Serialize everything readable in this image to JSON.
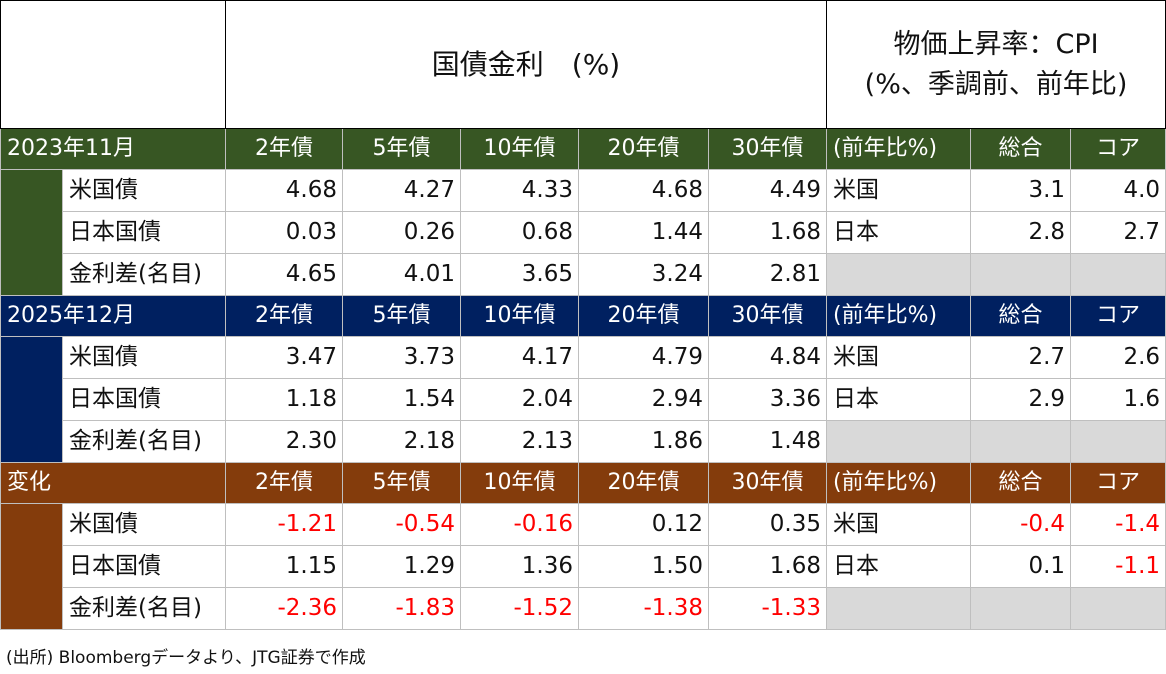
{
  "header": {
    "yield_title": "国債金利　(%)",
    "cpi_title_line1": "物価上昇率：CPI",
    "cpi_title_line2": "(%、季調前、前年比)"
  },
  "columns": {
    "tenors": [
      "2年債",
      "5年債",
      "10年債",
      "20年債",
      "30年債"
    ],
    "cpi_label": "(前年比%)",
    "cpi_total": "総合",
    "cpi_core": "コア"
  },
  "rows": {
    "us": "米国債",
    "jp": "日本国債",
    "spread": "金利差(名目)",
    "cpi_us": "米国",
    "cpi_jp": "日本"
  },
  "blocks": [
    {
      "label": "2023年11月",
      "color": "#375623",
      "us": [
        "4.68",
        "4.27",
        "4.33",
        "4.68",
        "4.49"
      ],
      "jp": [
        "0.03",
        "0.26",
        "0.68",
        "1.44",
        "1.68"
      ],
      "spread": [
        "4.65",
        "4.01",
        "3.65",
        "3.24",
        "2.81"
      ],
      "cpi_us": [
        "3.1",
        "4.0"
      ],
      "cpi_jp": [
        "2.8",
        "2.7"
      ]
    },
    {
      "label": "2025年12月",
      "color": "#002060",
      "us": [
        "3.47",
        "3.73",
        "4.17",
        "4.79",
        "4.84"
      ],
      "jp": [
        "1.18",
        "1.54",
        "2.04",
        "2.94",
        "3.36"
      ],
      "spread": [
        "2.30",
        "2.18",
        "2.13",
        "1.86",
        "1.48"
      ],
      "cpi_us": [
        "2.7",
        "2.6"
      ],
      "cpi_jp": [
        "2.9",
        "1.6"
      ]
    },
    {
      "label": "変化",
      "color": "#843c0c",
      "us": [
        "-1.21",
        "-0.54",
        "-0.16",
        "0.12",
        "0.35"
      ],
      "jp": [
        "1.15",
        "1.29",
        "1.36",
        "1.50",
        "1.68"
      ],
      "spread": [
        "-2.36",
        "-1.83",
        "-1.52",
        "-1.38",
        "-1.33"
      ],
      "cpi_us": [
        "-0.4",
        "-1.4"
      ],
      "cpi_jp": [
        "0.1",
        "-1.1"
      ]
    }
  ],
  "source": "(出所) Bloombergデータより、JTG証券で作成",
  "colors": {
    "negative": "#ff0000",
    "empty_cell": "#d9d9d9"
  }
}
